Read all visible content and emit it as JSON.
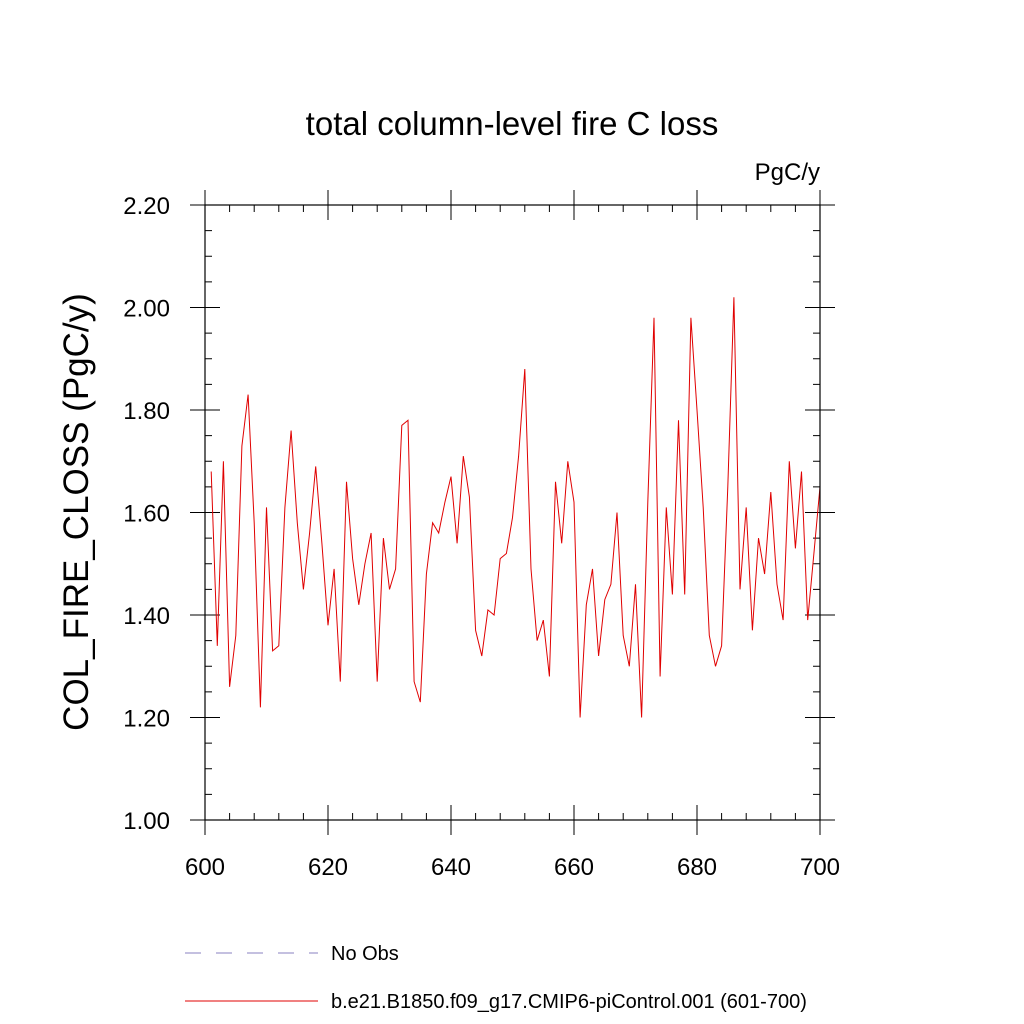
{
  "chart_data": {
    "type": "line",
    "title": "total column-level fire C loss",
    "units_label": "PgC/y",
    "ylabel": "COL_FIRE_CLOSS  (PgC/y)",
    "xlabel": "",
    "xlim": [
      600,
      700
    ],
    "ylim": [
      1.0,
      2.2
    ],
    "x_ticks": [
      600,
      620,
      640,
      660,
      680,
      700
    ],
    "x_tick_labels": [
      "600",
      "620",
      "640",
      "660",
      "680",
      "700"
    ],
    "x_minor_step": 4,
    "y_ticks": [
      1.0,
      1.2,
      1.4,
      1.6,
      1.8,
      2.0,
      2.2
    ],
    "y_tick_labels": [
      "1.00",
      "1.20",
      "1.40",
      "1.60",
      "1.80",
      "2.00",
      "2.20"
    ],
    "y_minor_step": 0.05,
    "grid": false,
    "legend_position": "bottom",
    "legend": [
      {
        "label": "No Obs",
        "color": "#8a80c0",
        "style": "dashed"
      },
      {
        "label": "b.e21.B1850.f09_g17.CMIP6-piControl.001 (601-700)",
        "color": "#e00000",
        "style": "solid"
      }
    ],
    "series": [
      {
        "name": "b.e21.B1850.f09_g17.CMIP6-piControl.001 (601-700)",
        "color": "#e00000",
        "x": [
          601,
          602,
          603,
          604,
          605,
          606,
          607,
          608,
          609,
          610,
          611,
          612,
          613,
          614,
          615,
          616,
          617,
          618,
          619,
          620,
          621,
          622,
          623,
          624,
          625,
          626,
          627,
          628,
          629,
          630,
          631,
          632,
          633,
          634,
          635,
          636,
          637,
          638,
          639,
          640,
          641,
          642,
          643,
          644,
          645,
          646,
          647,
          648,
          649,
          650,
          651,
          652,
          653,
          654,
          655,
          656,
          657,
          658,
          659,
          660,
          661,
          662,
          663,
          664,
          665,
          666,
          667,
          668,
          669,
          670,
          671,
          672,
          673,
          674,
          675,
          676,
          677,
          678,
          679,
          680,
          681,
          682,
          683,
          684,
          685,
          686,
          687,
          688,
          689,
          690,
          691,
          692,
          693,
          694,
          695,
          696,
          697,
          698,
          699,
          700
        ],
        "values": [
          1.68,
          1.34,
          1.7,
          1.26,
          1.36,
          1.73,
          1.83,
          1.58,
          1.22,
          1.61,
          1.33,
          1.34,
          1.61,
          1.76,
          1.58,
          1.45,
          1.56,
          1.69,
          1.54,
          1.38,
          1.49,
          1.27,
          1.66,
          1.51,
          1.42,
          1.5,
          1.56,
          1.27,
          1.55,
          1.45,
          1.49,
          1.77,
          1.78,
          1.27,
          1.23,
          1.48,
          1.58,
          1.56,
          1.62,
          1.67,
          1.54,
          1.71,
          1.63,
          1.37,
          1.32,
          1.41,
          1.4,
          1.51,
          1.52,
          1.59,
          1.71,
          1.88,
          1.49,
          1.35,
          1.39,
          1.28,
          1.66,
          1.54,
          1.7,
          1.62,
          1.2,
          1.42,
          1.49,
          1.32,
          1.43,
          1.46,
          1.6,
          1.36,
          1.3,
          1.46,
          1.2,
          1.62,
          1.98,
          1.28,
          1.61,
          1.44,
          1.78,
          1.44,
          1.98,
          1.8,
          1.61,
          1.36,
          1.3,
          1.34,
          1.65,
          2.02,
          1.45,
          1.61,
          1.37,
          1.55,
          1.48,
          1.64,
          1.46,
          1.39,
          1.7,
          1.53,
          1.68,
          1.39,
          1.52,
          1.65
        ]
      }
    ]
  }
}
